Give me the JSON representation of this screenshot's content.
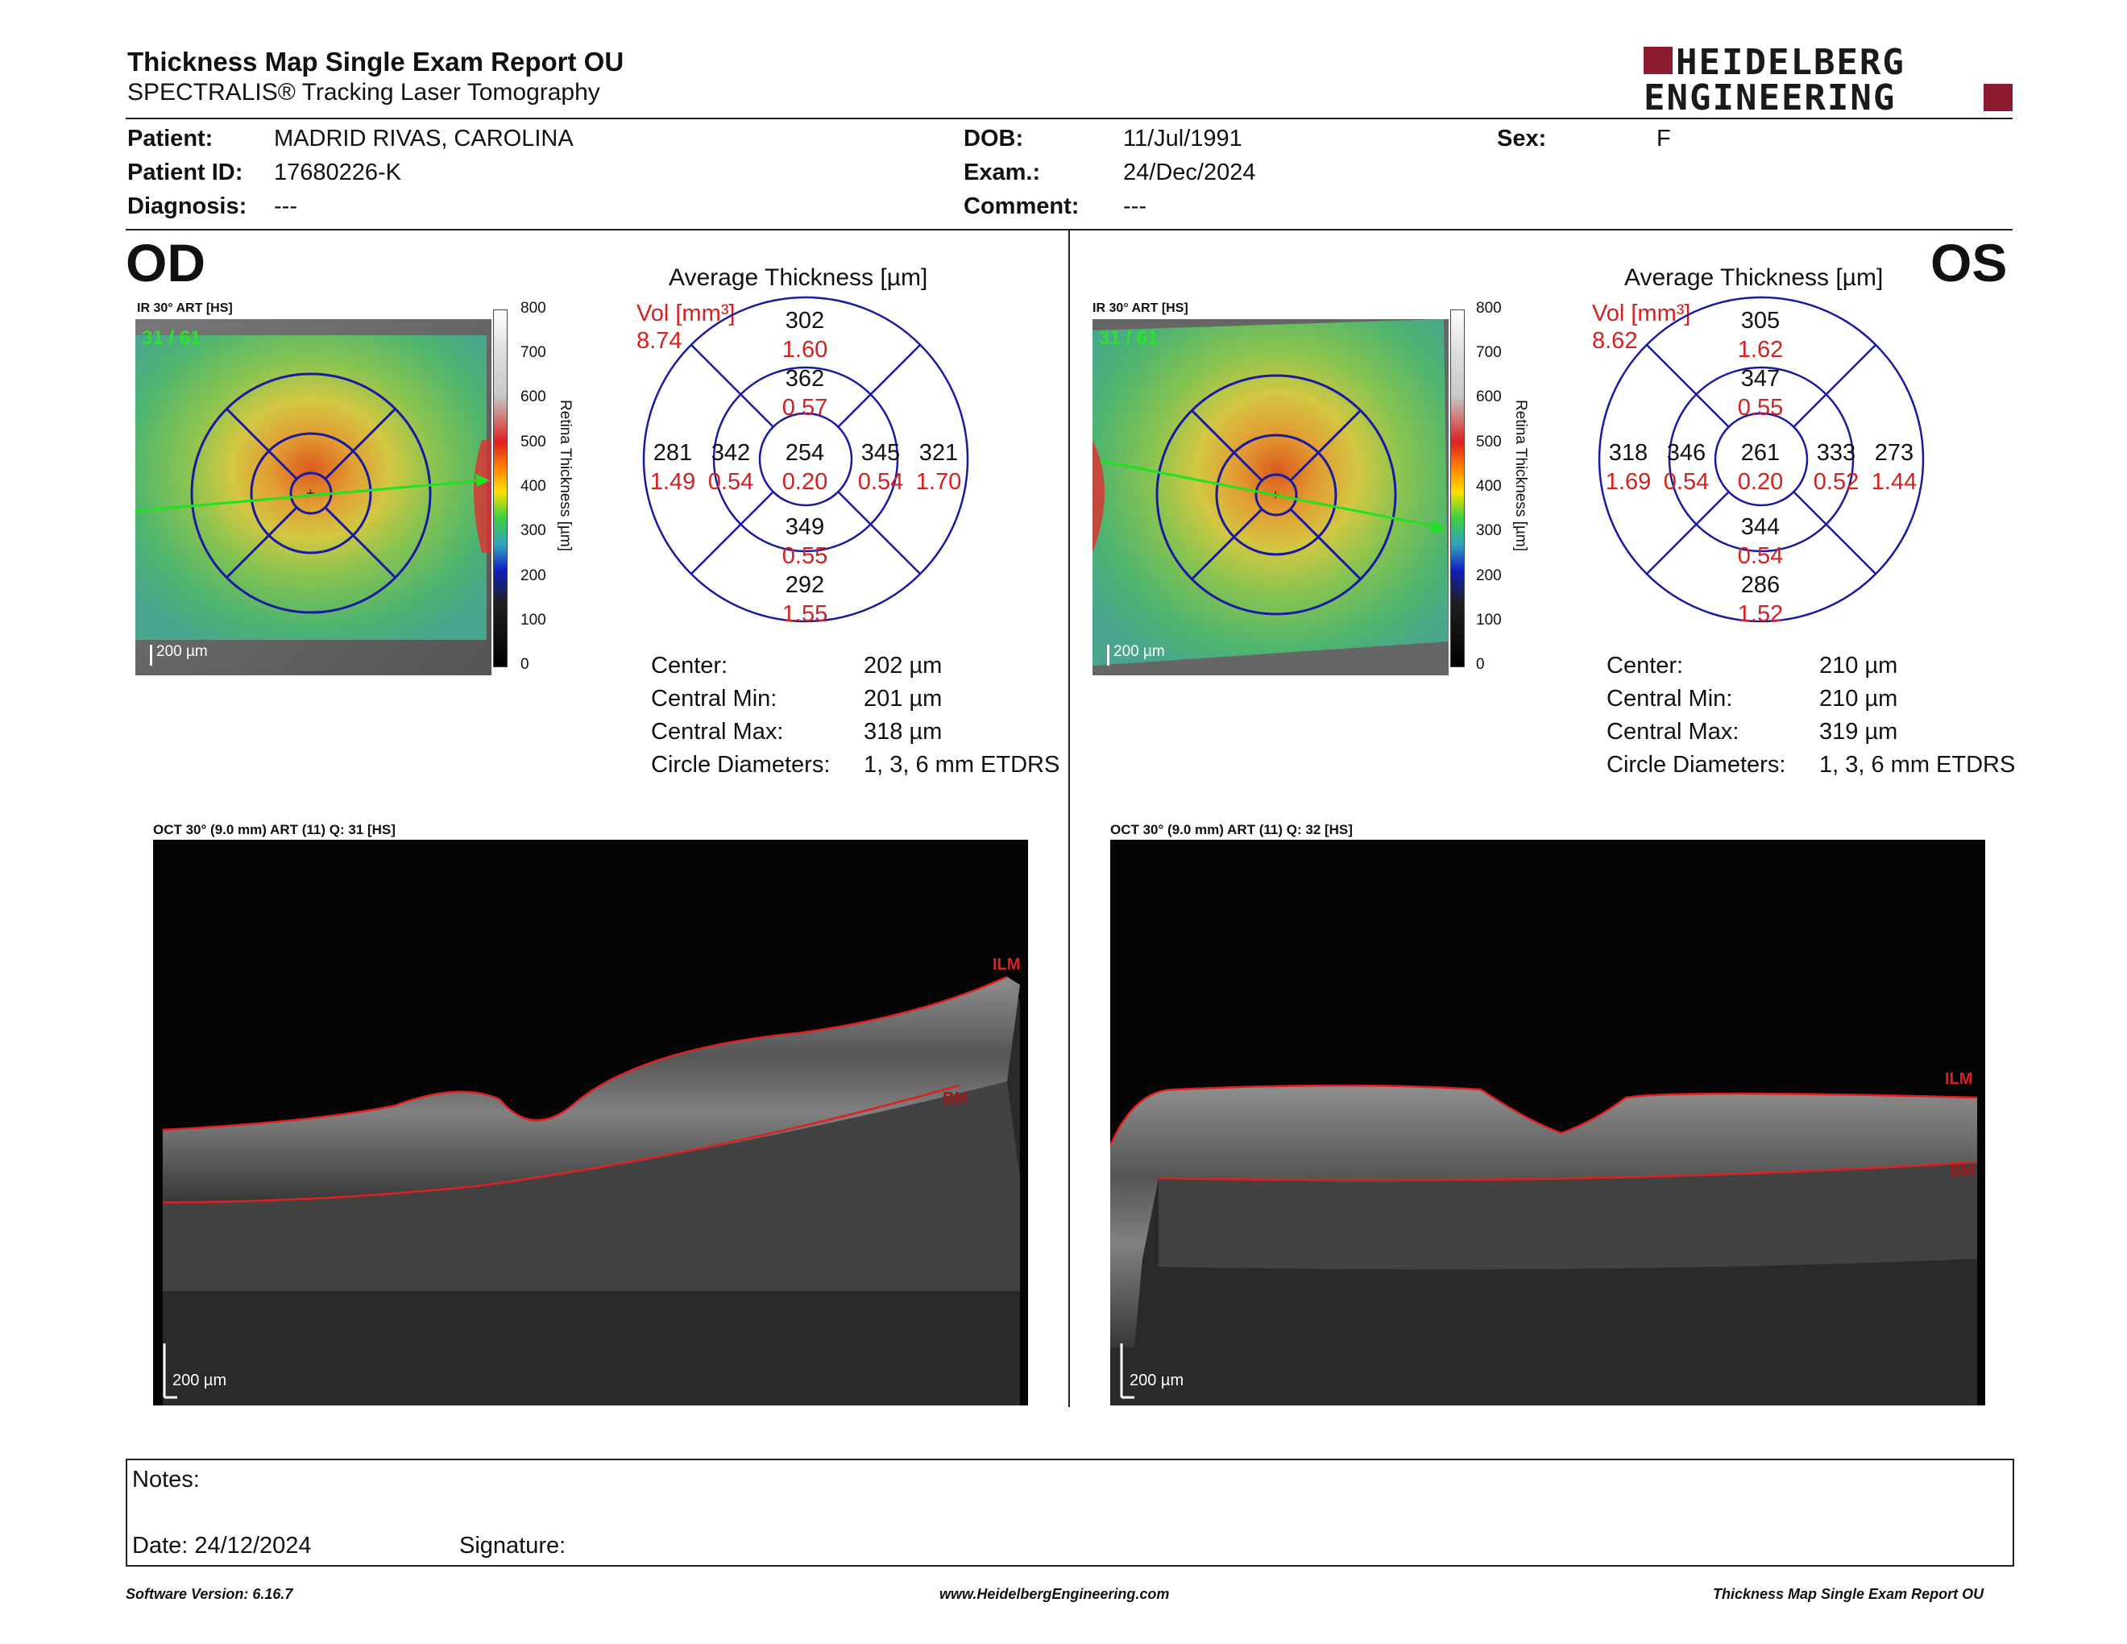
{
  "header": {
    "title": "Thickness Map Single Exam Report OU",
    "subtitle": "SPECTRALIS® Tracking Laser Tomography",
    "logo_line1": "HEIDELBERG",
    "logo_line2": "ENGINEERING"
  },
  "patient": {
    "patient_label": "Patient:",
    "patient_value": "MADRID RIVAS, CAROLINA",
    "id_label": "Patient ID:",
    "id_value": "17680226-K",
    "diagnosis_label": "Diagnosis:",
    "diagnosis_value": "---",
    "dob_label": "DOB:",
    "dob_value": "11/Jul/1991",
    "exam_label": "Exam.:",
    "exam_value": "24/Dec/2024",
    "comment_label": "Comment:",
    "comment_value": "---",
    "sex_label": "Sex:",
    "sex_value": "F"
  },
  "colorbar": {
    "ticks": [
      "800",
      "700",
      "600",
      "500",
      "400",
      "300",
      "200",
      "100",
      "0"
    ],
    "title": "Retina  Thickness [µm]"
  },
  "od": {
    "eye": "OD",
    "ir_caption": "IR 30° ART [HS]",
    "ir_counter": "31 / 61",
    "ir_scale": "200 µm",
    "avg_title": "Average Thickness [µm]",
    "vol_label": "Vol [mm³]",
    "vol_total": "8.74",
    "sectors": {
      "outer_superior": {
        "t": "302",
        "v": "1.60"
      },
      "inner_superior": {
        "t": "362",
        "v": "0.57"
      },
      "outer_nasal_left": {
        "t": "281",
        "v": "1.49"
      },
      "inner_left": {
        "t": "342",
        "v": "0.54"
      },
      "center": {
        "t": "254",
        "v": "0.20"
      },
      "inner_right": {
        "t": "345",
        "v": "0.54"
      },
      "outer_right": {
        "t": "321",
        "v": "1.70"
      },
      "inner_inferior": {
        "t": "349",
        "v": "0.55"
      },
      "outer_inferior": {
        "t": "292",
        "v": "1.55"
      }
    },
    "stats": {
      "center_label": "Center:",
      "center": "202 µm",
      "min_label": "Central Min:",
      "min": "201 µm",
      "max_label": "Central Max:",
      "max": "318 µm",
      "diam_label": "Circle Diameters:",
      "diam": "1, 3, 6 mm ETDRS"
    },
    "oct_caption": "OCT 30° (9.0 mm) ART (11) Q: 31 [HS]",
    "oct_scale": "200 µm",
    "ilm": "ILM",
    "bm": "BM"
  },
  "os": {
    "eye": "OS",
    "ir_caption": "IR 30° ART [HS]",
    "ir_counter": "31 / 61",
    "ir_scale": "200 µm",
    "avg_title": "Average Thickness [µm]",
    "vol_label": "Vol [mm³]",
    "vol_total": "8.62",
    "sectors": {
      "outer_superior": {
        "t": "305",
        "v": "1.62"
      },
      "inner_superior": {
        "t": "347",
        "v": "0.55"
      },
      "outer_nasal_left": {
        "t": "318",
        "v": "1.69"
      },
      "inner_left": {
        "t": "346",
        "v": "0.54"
      },
      "center": {
        "t": "261",
        "v": "0.20"
      },
      "inner_right": {
        "t": "333",
        "v": "0.52"
      },
      "outer_right": {
        "t": "273",
        "v": "1.44"
      },
      "inner_inferior": {
        "t": "344",
        "v": "0.54"
      },
      "outer_inferior": {
        "t": "286",
        "v": "1.52"
      }
    },
    "stats": {
      "center_label": "Center:",
      "center": "210 µm",
      "min_label": "Central Min:",
      "min": "210 µm",
      "max_label": "Central Max:",
      "max": "319 µm",
      "diam_label": "Circle Diameters:",
      "diam": "1, 3, 6 mm ETDRS"
    },
    "oct_caption": "OCT 30° (9.0 mm) ART (11) Q: 32 [HS]",
    "oct_scale": "200 µm",
    "ilm": "ILM",
    "bm": "BM"
  },
  "notes": {
    "notes_label": "Notes:",
    "date_label": "Date: 24/12/2024",
    "signature_label": "Signature:"
  },
  "footer": {
    "software": "Software Version: 6.16.7",
    "url": "www.HeidelbergEngineering.com",
    "report": "Thickness Map Single Exam Report OU"
  },
  "colors": {
    "accent_red": "#d42020",
    "logo_red": "#8c1b2f",
    "etdrs_blue": "#1a1aa0"
  }
}
